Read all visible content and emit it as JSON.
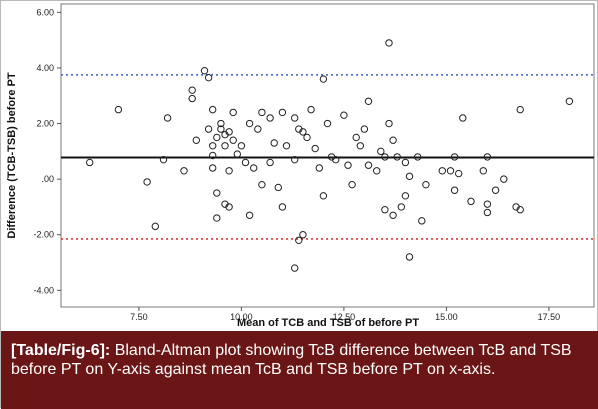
{
  "chart_data": {
    "type": "scatter",
    "title": "",
    "xlabel": "Mean of TCB and TSB of before PT",
    "ylabel": "Difference (TCB-TSB) before PT",
    "xlim": [
      5.6,
      18.6
    ],
    "ylim": [
      -4.6,
      6.3
    ],
    "x_ticks": [
      "7.50",
      "10.00",
      "12.50",
      "15.00",
      "17.50"
    ],
    "y_ticks": [
      "6.00",
      "4.00",
      "2.00",
      ".00",
      "-2.00",
      "-4.00"
    ],
    "grid": false,
    "reference_lines": [
      {
        "name": "upper limit of agreement",
        "y": 3.75,
        "style": "dotted",
        "color": "#3a5bc7"
      },
      {
        "name": "mean difference",
        "y": 0.78,
        "style": "solid",
        "color": "#111111"
      },
      {
        "name": "lower limit of agreement",
        "y": -2.15,
        "style": "dotted",
        "color": "#e03535"
      }
    ],
    "points": [
      {
        "x": 6.3,
        "y": 0.6
      },
      {
        "x": 7.0,
        "y": 2.5
      },
      {
        "x": 7.7,
        "y": -0.1
      },
      {
        "x": 7.9,
        "y": -1.7
      },
      {
        "x": 8.1,
        "y": 0.7
      },
      {
        "x": 8.2,
        "y": 2.2
      },
      {
        "x": 8.6,
        "y": 0.3
      },
      {
        "x": 8.8,
        "y": 3.2
      },
      {
        "x": 8.8,
        "y": 2.9
      },
      {
        "x": 8.9,
        "y": 1.4
      },
      {
        "x": 9.1,
        "y": 3.9
      },
      {
        "x": 9.2,
        "y": 3.65
      },
      {
        "x": 9.2,
        "y": 1.8
      },
      {
        "x": 9.3,
        "y": 2.5
      },
      {
        "x": 9.3,
        "y": 1.2
      },
      {
        "x": 9.3,
        "y": 0.85
      },
      {
        "x": 9.3,
        "y": 0.4
      },
      {
        "x": 9.4,
        "y": 1.5
      },
      {
        "x": 9.4,
        "y": -0.5
      },
      {
        "x": 9.4,
        "y": -1.4
      },
      {
        "x": 9.5,
        "y": 2.0
      },
      {
        "x": 9.5,
        "y": 1.8
      },
      {
        "x": 9.6,
        "y": 1.6
      },
      {
        "x": 9.6,
        "y": 1.2
      },
      {
        "x": 9.6,
        "y": -0.9
      },
      {
        "x": 9.7,
        "y": 1.7
      },
      {
        "x": 9.7,
        "y": 0.3
      },
      {
        "x": 9.7,
        "y": -1.0
      },
      {
        "x": 9.8,
        "y": 2.4
      },
      {
        "x": 9.8,
        "y": 1.4
      },
      {
        "x": 9.9,
        "y": 0.9
      },
      {
        "x": 10.0,
        "y": 1.2
      },
      {
        "x": 10.1,
        "y": 0.6
      },
      {
        "x": 10.2,
        "y": 2.0
      },
      {
        "x": 10.2,
        "y": -1.3
      },
      {
        "x": 10.3,
        "y": 0.4
      },
      {
        "x": 10.4,
        "y": 1.8
      },
      {
        "x": 10.5,
        "y": 2.4
      },
      {
        "x": 10.5,
        "y": -0.2
      },
      {
        "x": 10.7,
        "y": 2.2
      },
      {
        "x": 10.7,
        "y": 0.6
      },
      {
        "x": 10.8,
        "y": 1.3
      },
      {
        "x": 10.9,
        "y": -0.3
      },
      {
        "x": 11.0,
        "y": 2.4
      },
      {
        "x": 11.0,
        "y": -1.0
      },
      {
        "x": 11.1,
        "y": 1.2
      },
      {
        "x": 11.3,
        "y": 2.2
      },
      {
        "x": 11.3,
        "y": 0.7
      },
      {
        "x": 11.3,
        "y": -3.2
      },
      {
        "x": 11.4,
        "y": 1.8
      },
      {
        "x": 11.4,
        "y": -2.2
      },
      {
        "x": 11.5,
        "y": 1.7
      },
      {
        "x": 11.5,
        "y": -2.0
      },
      {
        "x": 11.6,
        "y": 1.5
      },
      {
        "x": 11.7,
        "y": 2.5
      },
      {
        "x": 11.8,
        "y": 1.1
      },
      {
        "x": 11.9,
        "y": 0.4
      },
      {
        "x": 12.0,
        "y": 3.6
      },
      {
        "x": 12.0,
        "y": -0.6
      },
      {
        "x": 12.1,
        "y": 2.0
      },
      {
        "x": 12.2,
        "y": 0.8
      },
      {
        "x": 12.3,
        "y": 0.7
      },
      {
        "x": 12.5,
        "y": 2.3
      },
      {
        "x": 12.6,
        "y": 0.5
      },
      {
        "x": 12.7,
        "y": -0.2
      },
      {
        "x": 12.8,
        "y": 1.5
      },
      {
        "x": 12.9,
        "y": 1.2
      },
      {
        "x": 13.0,
        "y": 1.8
      },
      {
        "x": 13.1,
        "y": 2.8
      },
      {
        "x": 13.1,
        "y": 0.5
      },
      {
        "x": 13.3,
        "y": 0.3
      },
      {
        "x": 13.4,
        "y": 1.0
      },
      {
        "x": 13.5,
        "y": 0.8
      },
      {
        "x": 13.5,
        "y": -1.1
      },
      {
        "x": 13.6,
        "y": 4.9
      },
      {
        "x": 13.6,
        "y": 2.0
      },
      {
        "x": 13.7,
        "y": 1.4
      },
      {
        "x": 13.7,
        "y": -1.3
      },
      {
        "x": 13.8,
        "y": 0.8
      },
      {
        "x": 13.9,
        "y": -1.0
      },
      {
        "x": 14.0,
        "y": 0.6
      },
      {
        "x": 14.0,
        "y": -0.6
      },
      {
        "x": 14.1,
        "y": -2.8
      },
      {
        "x": 14.1,
        "y": 0.1
      },
      {
        "x": 14.3,
        "y": 0.8
      },
      {
        "x": 14.4,
        "y": -1.5
      },
      {
        "x": 14.5,
        "y": -0.2
      },
      {
        "x": 14.9,
        "y": 0.3
      },
      {
        "x": 15.1,
        "y": 0.3
      },
      {
        "x": 15.2,
        "y": 0.8
      },
      {
        "x": 15.2,
        "y": -0.4
      },
      {
        "x": 15.3,
        "y": 0.2
      },
      {
        "x": 15.4,
        "y": 2.2
      },
      {
        "x": 15.6,
        "y": -0.8
      },
      {
        "x": 15.9,
        "y": 0.3
      },
      {
        "x": 16.0,
        "y": 0.8
      },
      {
        "x": 16.0,
        "y": -0.9
      },
      {
        "x": 16.0,
        "y": -1.2
      },
      {
        "x": 16.2,
        "y": -0.4
      },
      {
        "x": 16.4,
        "y": 0.0
      },
      {
        "x": 16.7,
        "y": -1.0
      },
      {
        "x": 16.8,
        "y": 2.5
      },
      {
        "x": 16.8,
        "y": -1.1
      },
      {
        "x": 18.0,
        "y": 2.8
      }
    ]
  },
  "caption": {
    "label": "[Table/Fig-6]:",
    "text": " Bland-Altman plot showing TcB difference between TcB and TSB before PT on Y-axis against mean TcB and TSB before PT on x-axis."
  }
}
